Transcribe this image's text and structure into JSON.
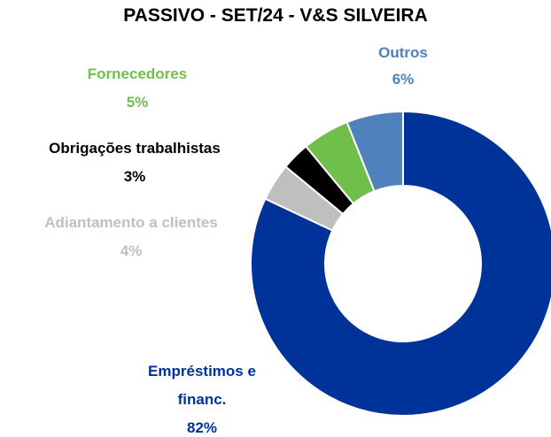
{
  "chart_data": {
    "type": "donut",
    "title": "PASSIVO - SET/24 - V&S SILVEIRA",
    "categories": [
      "Empréstimos e financ.",
      "Adiantamento a clientes",
      "Obrigações trabalhistas",
      "Fornecedores",
      "Outros"
    ],
    "values": [
      82,
      4,
      3,
      5,
      6
    ],
    "value_labels": [
      "82%",
      "4%",
      "3%",
      "5%",
      "6%"
    ],
    "colors": [
      "#003399",
      "#bfbfbf",
      "#000000",
      "#70bf4c",
      "#4f81bd"
    ]
  }
}
